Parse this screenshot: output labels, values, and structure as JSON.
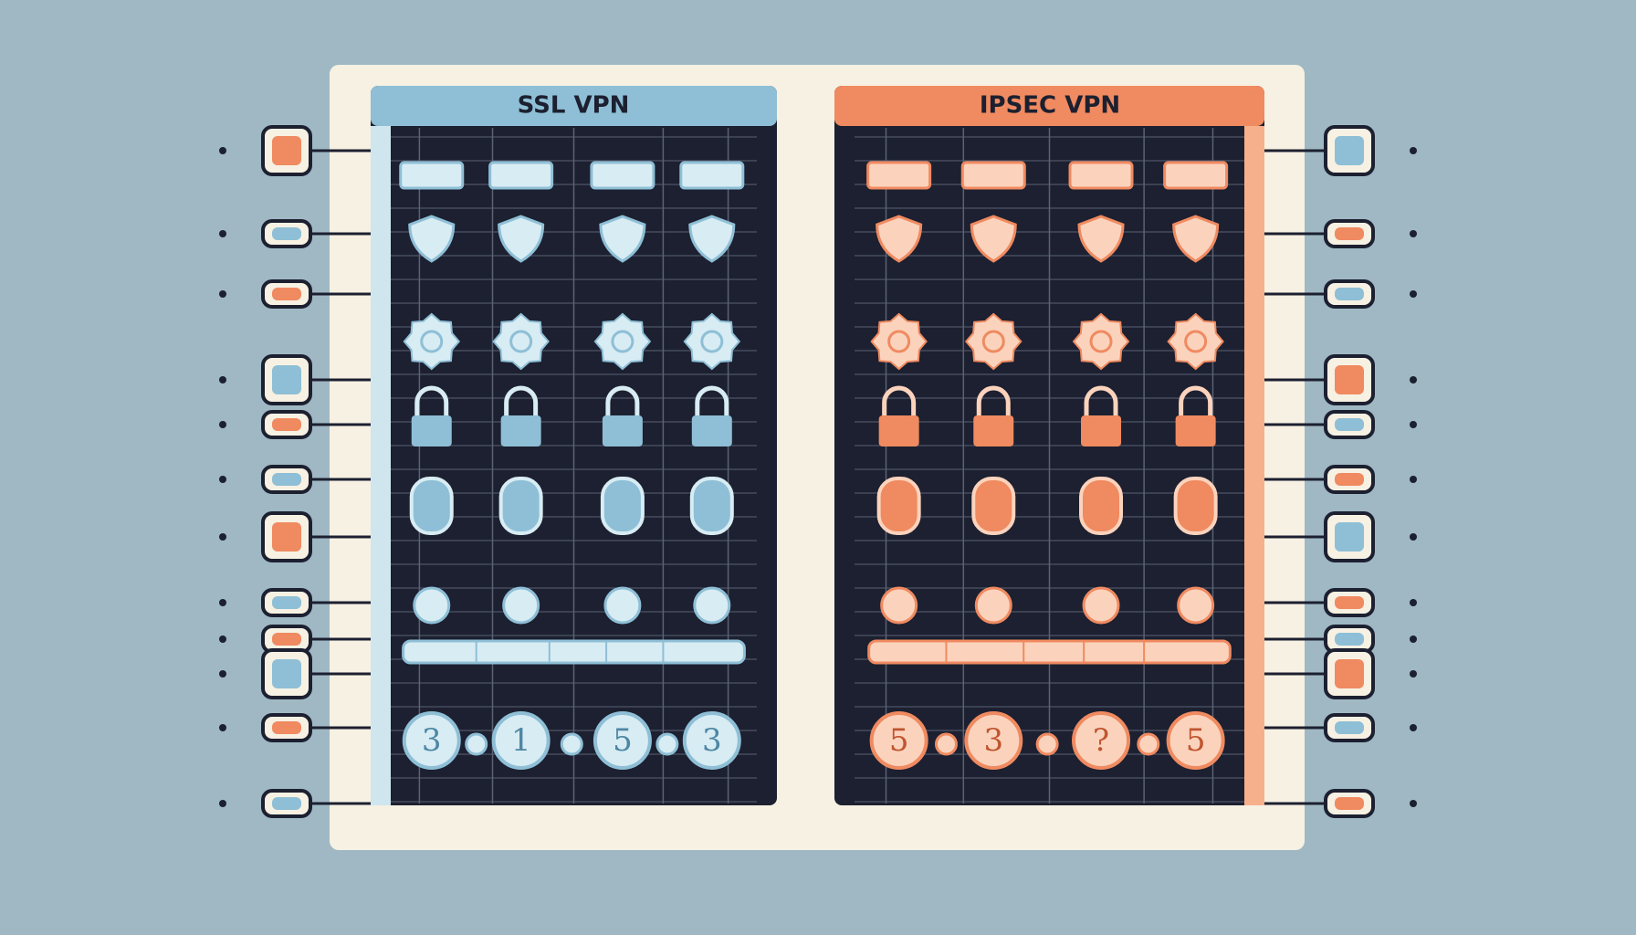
{
  "panels": [
    {
      "title": "SSL VPN",
      "badges": [
        "3",
        "1",
        "5",
        "3"
      ]
    },
    {
      "title": "IPSEC VPN",
      "badges": [
        "5",
        "3",
        "?",
        "5"
      ]
    }
  ]
}
